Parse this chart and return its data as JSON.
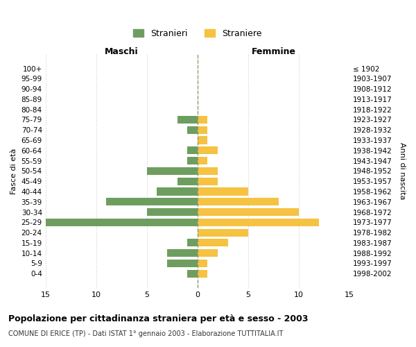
{
  "age_groups": [
    "0-4",
    "5-9",
    "10-14",
    "15-19",
    "20-24",
    "25-29",
    "30-34",
    "35-39",
    "40-44",
    "45-49",
    "50-54",
    "55-59",
    "60-64",
    "65-69",
    "70-74",
    "75-79",
    "80-84",
    "85-89",
    "90-94",
    "95-99",
    "100+"
  ],
  "birth_years": [
    "1998-2002",
    "1993-1997",
    "1988-1992",
    "1983-1987",
    "1978-1982",
    "1973-1977",
    "1968-1972",
    "1963-1967",
    "1958-1962",
    "1953-1957",
    "1948-1952",
    "1943-1947",
    "1938-1942",
    "1933-1937",
    "1928-1932",
    "1923-1927",
    "1918-1922",
    "1913-1917",
    "1908-1912",
    "1903-1907",
    "≤ 1902"
  ],
  "males": [
    1,
    3,
    3,
    1,
    0,
    16,
    5,
    9,
    4,
    2,
    5,
    1,
    1,
    0,
    1,
    2,
    0,
    0,
    0,
    0,
    0
  ],
  "females": [
    1,
    1,
    2,
    3,
    5,
    12,
    10,
    8,
    5,
    2,
    2,
    1,
    2,
    1,
    1,
    1,
    0,
    0,
    0,
    0,
    0
  ],
  "male_color": "#6e9e5f",
  "female_color": "#f5c242",
  "title": "Popolazione per cittadinanza straniera per età e sesso - 2003",
  "subtitle": "COMUNE DI ERICE (TP) - Dati ISTAT 1° gennaio 2003 - Elaborazione TUTTITALIA.IT",
  "xlabel_left": "Maschi",
  "xlabel_right": "Femmine",
  "ylabel_left": "Fasce di età",
  "ylabel_right": "Anni di nascita",
  "legend_stranieri": "Stranieri",
  "legend_straniere": "Straniere",
  "xlim": 15,
  "background_color": "#ffffff",
  "grid_color": "#cccccc",
  "dashed_line_color": "#999966"
}
